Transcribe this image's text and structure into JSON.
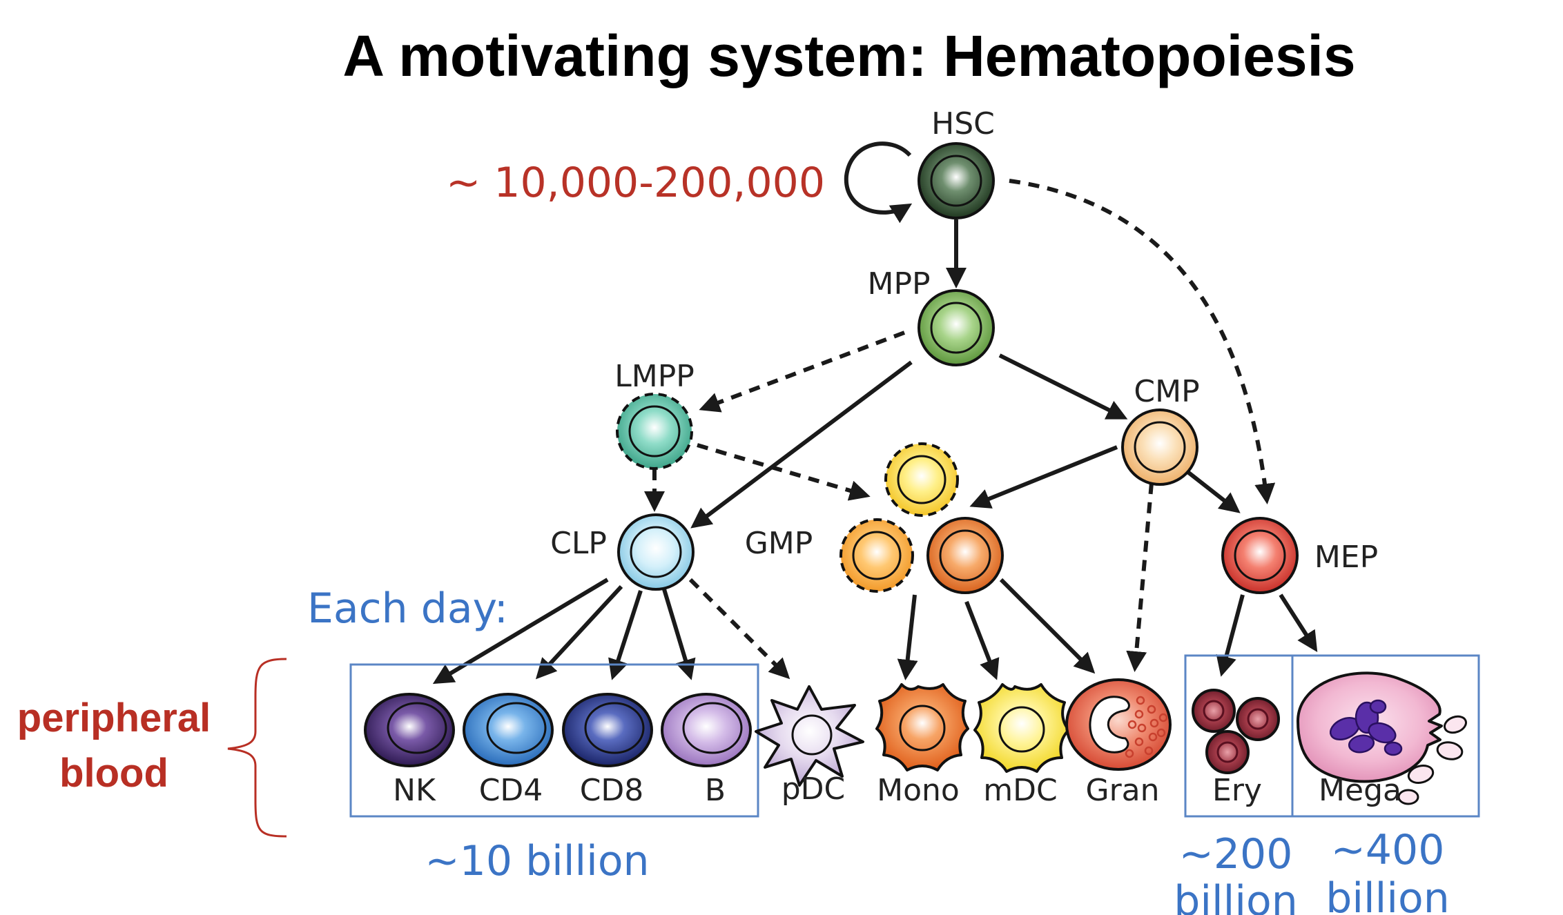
{
  "title": "A motivating system: Hematopoiesis",
  "hsc_count": "~ 10,000-200,000",
  "each_day_label": "Each day:",
  "peripheral_blood": [
    "peripheral",
    "blood"
  ],
  "counts": {
    "lymphoid": "~10 billion",
    "ery": [
      "~200",
      "billion"
    ],
    "mega": [
      "~400",
      "billion"
    ]
  },
  "nodes": {
    "hsc": {
      "label": "HSC",
      "color": "#3a5a3a"
    },
    "mpp": {
      "label": "MPP",
      "color": "#7fb55a"
    },
    "lmpp": {
      "label": "LMPP",
      "color": "#5cc0a8"
    },
    "cmp": {
      "label": "CMP",
      "color": "#f6c98e"
    },
    "clp": {
      "label": "CLP",
      "color": "#a9def2"
    },
    "gmp": {
      "label": "GMP",
      "color": "#f08a3a"
    },
    "mep": {
      "label": "MEP",
      "color": "#e84c3e"
    },
    "nk": {
      "label": "NK",
      "color": "#4a2d74"
    },
    "cd4": {
      "label": "CD4",
      "color": "#3f8fd6"
    },
    "cd8": {
      "label": "CD8",
      "color": "#273a8f"
    },
    "b": {
      "label": "B",
      "color": "#b694d2"
    },
    "pdc": {
      "label": "pDC",
      "color": "#d8c8e6"
    },
    "mono": {
      "label": "Mono",
      "color": "#f07a30"
    },
    "mdc": {
      "label": "mDC",
      "color": "#f8e65a"
    },
    "gran": {
      "label": "Gran",
      "color": "#e35a44"
    },
    "ery": {
      "label": "Ery",
      "color": "#8a2a36"
    },
    "mega": {
      "label": "Mega",
      "color": "#f2b8cf"
    }
  }
}
